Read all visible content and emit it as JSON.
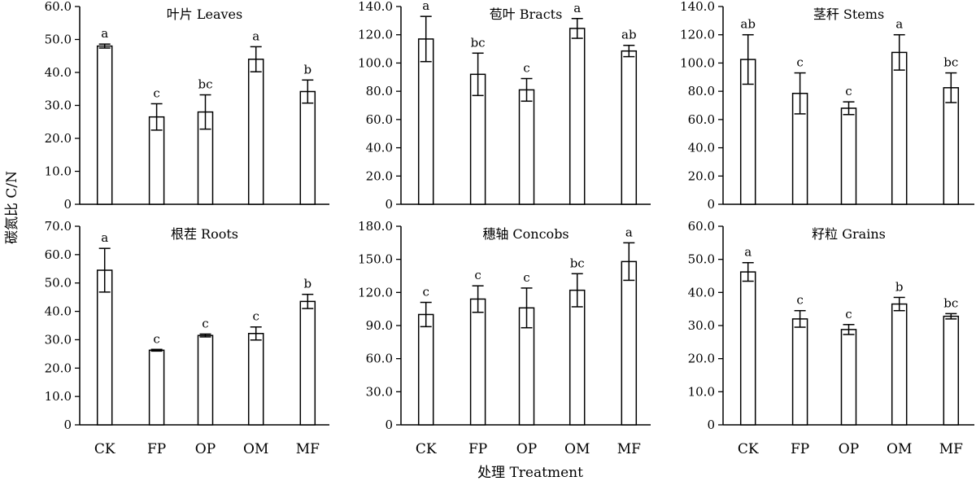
{
  "figure": {
    "ylabel": "碳氮比 C/N",
    "xlabel": "处理 Treatment",
    "categories": [
      "CK",
      "FP",
      "OP",
      "OM",
      "MF"
    ]
  },
  "chart_data": [
    {
      "type": "bar",
      "title": "叶片 Leaves",
      "categories": [
        "CK",
        "FP",
        "OP",
        "OM",
        "MF"
      ],
      "values": [
        48.0,
        26.5,
        28.0,
        44.0,
        34.2
      ],
      "errors": [
        0.6,
        4.0,
        5.2,
        3.8,
        3.5
      ],
      "labels": [
        "a",
        "c",
        "bc",
        "a",
        "b"
      ],
      "ylim": [
        0,
        60
      ],
      "yticks": [
        0,
        10,
        20,
        30,
        40,
        50,
        60
      ],
      "ytick_labels": [
        "0",
        "10.0",
        "20.0",
        "30.0",
        "40.0",
        "50.0",
        "60.0"
      ],
      "xlabel": "",
      "ylabel": "碳氮比 C/N"
    },
    {
      "type": "bar",
      "title": "苞叶 Bracts",
      "categories": [
        "CK",
        "FP",
        "OP",
        "OM",
        "MF"
      ],
      "values": [
        117.0,
        92.0,
        81.0,
        124.5,
        108.5
      ],
      "errors": [
        16.0,
        15.0,
        8.0,
        7.0,
        4.0
      ],
      "labels": [
        "a",
        "bc",
        "c",
        "a",
        "ab"
      ],
      "ylim": [
        0,
        140
      ],
      "yticks": [
        0,
        20,
        40,
        60,
        80,
        100,
        120,
        140
      ],
      "ytick_labels": [
        "0",
        "20.0",
        "40.0",
        "60.0",
        "80.0",
        "100.0",
        "120.0",
        "140.0"
      ],
      "xlabel": "",
      "ylabel": "碳氮比 C/N"
    },
    {
      "type": "bar",
      "title": "茎秆 Stems",
      "categories": [
        "CK",
        "FP",
        "OP",
        "OM",
        "MF"
      ],
      "values": [
        102.5,
        78.5,
        68.0,
        107.5,
        82.5
      ],
      "errors": [
        17.5,
        14.5,
        4.5,
        12.5,
        10.5
      ],
      "labels": [
        "ab",
        "c",
        "c",
        "a",
        "bc"
      ],
      "ylim": [
        0,
        140
      ],
      "yticks": [
        0,
        20,
        40,
        60,
        80,
        100,
        120,
        140
      ],
      "ytick_labels": [
        "0",
        "20.0",
        "40.0",
        "60.0",
        "80.0",
        "100.0",
        "120.0",
        "140.0"
      ],
      "xlabel": "",
      "ylabel": "碳氮比 C/N"
    },
    {
      "type": "bar",
      "title": "根茬 Roots",
      "categories": [
        "CK",
        "FP",
        "OP",
        "OM",
        "MF"
      ],
      "values": [
        54.5,
        26.3,
        31.5,
        32.2,
        43.5
      ],
      "errors": [
        7.7,
        0.3,
        0.5,
        2.3,
        2.5
      ],
      "labels": [
        "a",
        "c",
        "c",
        "c",
        "b"
      ],
      "ylim": [
        0,
        70
      ],
      "yticks": [
        0,
        10,
        20,
        30,
        40,
        50,
        60,
        70
      ],
      "ytick_labels": [
        "0",
        "10.0",
        "20.0",
        "30.0",
        "40.0",
        "50.0",
        "60.0",
        "70.0"
      ],
      "xlabel": "CK FP OP OM MF",
      "ylabel": "碳氮比 C/N"
    },
    {
      "type": "bar",
      "title": "穗轴 Concobs",
      "categories": [
        "CK",
        "FP",
        "OP",
        "OM",
        "MF"
      ],
      "values": [
        100.0,
        114.0,
        106.0,
        122.0,
        148.0
      ],
      "errors": [
        11.0,
        12.0,
        18.0,
        15.0,
        17.0
      ],
      "labels": [
        "c",
        "c",
        "c",
        "bc",
        "a"
      ],
      "ylim": [
        0,
        180
      ],
      "yticks": [
        0,
        30,
        60,
        90,
        120,
        150,
        180
      ],
      "ytick_labels": [
        "0",
        "30.0",
        "60.0",
        "90.0",
        "120.0",
        "150.0",
        "180.0"
      ],
      "xlabel": "CK FP OP OM MF",
      "ylabel": "碳氮比 C/N"
    },
    {
      "type": "bar",
      "title": "籽粒 Grains",
      "categories": [
        "CK",
        "FP",
        "OP",
        "OM",
        "MF"
      ],
      "values": [
        46.2,
        32.0,
        28.8,
        36.5,
        32.8
      ],
      "errors": [
        2.8,
        2.5,
        1.5,
        2.0,
        0.8
      ],
      "labels": [
        "a",
        "c",
        "c",
        "b",
        "bc"
      ],
      "ylim": [
        0,
        60
      ],
      "yticks": [
        0,
        10,
        20,
        30,
        40,
        50,
        60
      ],
      "ytick_labels": [
        "0",
        "10.0",
        "20.0",
        "30.0",
        "40.0",
        "50.0",
        "60.0"
      ],
      "xlabel": "CK FP OP OM MF",
      "ylabel": "碳氮比 C/N"
    }
  ]
}
